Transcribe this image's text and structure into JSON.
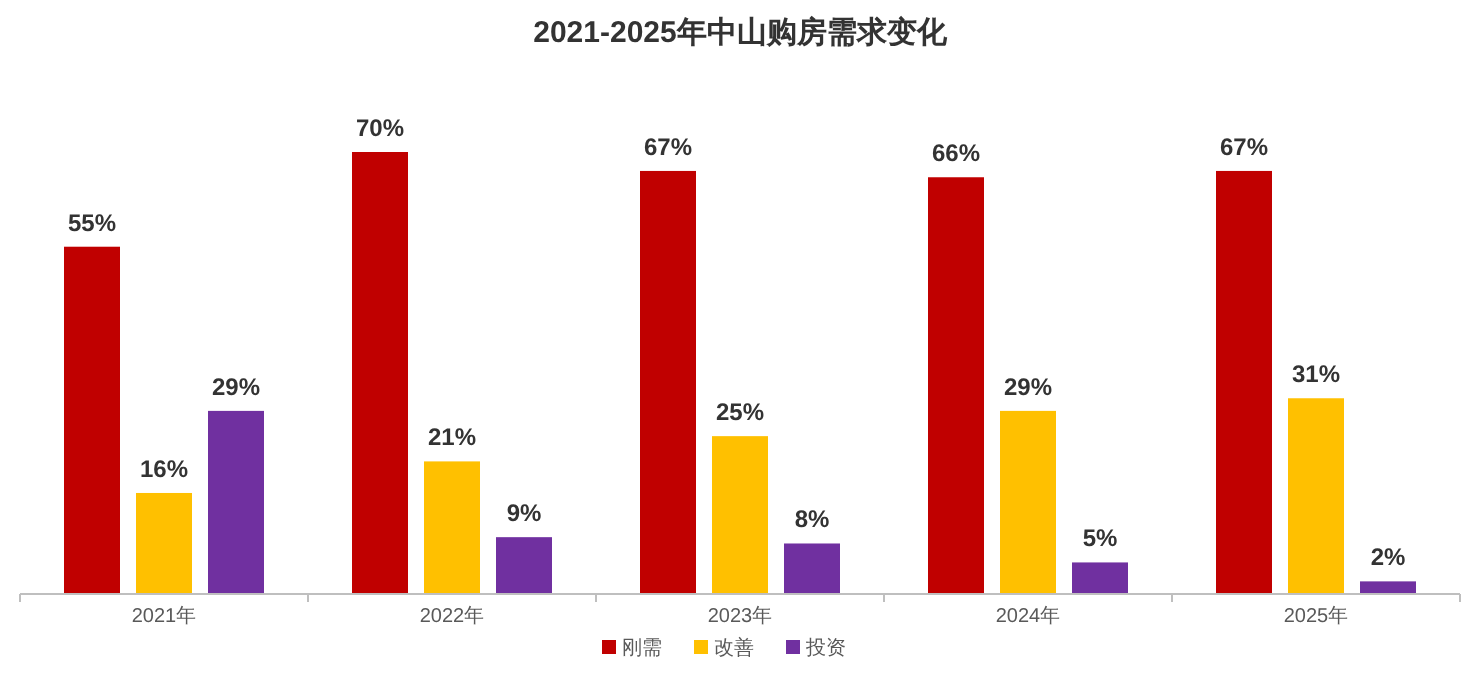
{
  "chart_data": {
    "type": "bar",
    "title": "2021-2025年中山购房需求变化",
    "categories": [
      "2021年",
      "2022年",
      "2023年",
      "2024年",
      "2025年"
    ],
    "series": [
      {
        "name": "刚需",
        "color": "#c00000",
        "values": [
          55,
          70,
          67,
          66,
          67
        ],
        "value_labels": [
          "55%",
          "70%",
          "67%",
          "66%",
          "67%"
        ]
      },
      {
        "name": "改善",
        "color": "#ffc000",
        "values": [
          16,
          21,
          25,
          29,
          31
        ],
        "value_labels": [
          "16%",
          "21%",
          "25%",
          "29%",
          "31%"
        ]
      },
      {
        "name": "投资",
        "color": "#7030a0",
        "values": [
          29,
          9,
          8,
          5,
          2
        ],
        "value_labels": [
          "29%",
          "9%",
          "8%",
          "5%",
          "2%"
        ]
      }
    ],
    "legend": "bottom",
    "grid": false
  }
}
